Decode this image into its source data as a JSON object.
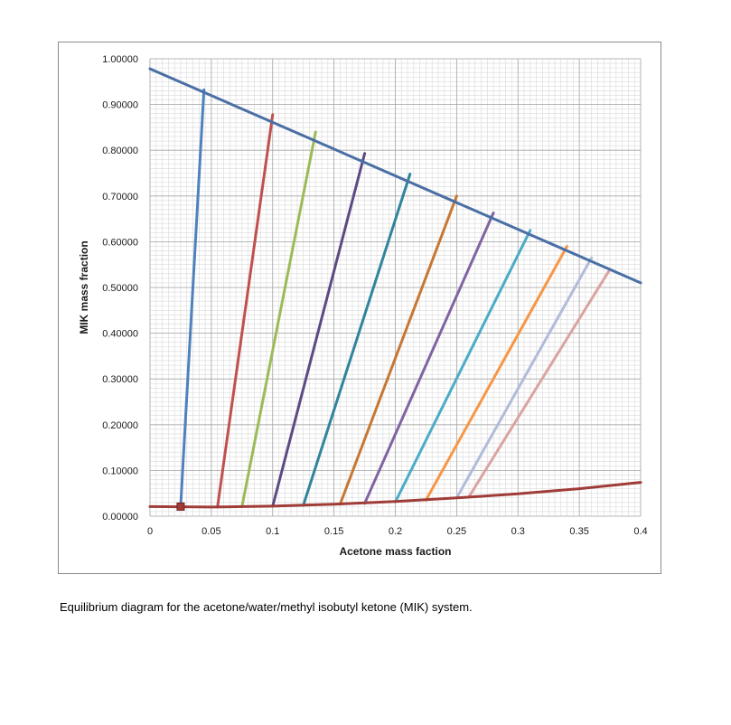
{
  "caption": "Equilibrium diagram for the acetone/water/methyl isobutyl ketone (MIK) system.",
  "chart_data": {
    "type": "line",
    "xlabel": "Acetone mass faction",
    "ylabel": "MIK mass fraction",
    "xlim": [
      0,
      0.4
    ],
    "ylim": [
      0,
      1.0
    ],
    "x_ticks": [
      "0",
      "0.05",
      "0.1",
      "0.15",
      "0.2",
      "0.25",
      "0.3",
      "0.35",
      "0.4"
    ],
    "y_ticks": [
      "0.00000",
      "0.10000",
      "0.20000",
      "0.30000",
      "0.40000",
      "0.50000",
      "0.60000",
      "0.70000",
      "0.80000",
      "0.90000",
      "1.00000"
    ],
    "grid": true,
    "minor_grid": true,
    "extract_curve": {
      "color": "#4a6fa5",
      "x": [
        0,
        0.4
      ],
      "y": [
        0.978,
        0.51
      ]
    },
    "raffinate_curve": {
      "color": "#a03c38",
      "x": [
        0,
        0.05,
        0.1,
        0.15,
        0.2,
        0.25,
        0.3,
        0.35,
        0.4
      ],
      "y": [
        0.021,
        0.02,
        0.022,
        0.026,
        0.032,
        0.04,
        0.049,
        0.06,
        0.074
      ]
    },
    "marker": {
      "x": 0.025,
      "y": 0.021,
      "color": "#a03c38"
    },
    "tie_lines": [
      {
        "color": "#4f81bd",
        "x": [
          0.025,
          0.044
        ],
        "y": [
          0.021,
          0.932
        ]
      },
      {
        "color": "#c0504d",
        "x": [
          0.055,
          0.1
        ],
        "y": [
          0.02,
          0.878
        ]
      },
      {
        "color": "#9bbb59",
        "x": [
          0.075,
          0.135
        ],
        "y": [
          0.021,
          0.84
        ]
      },
      {
        "color": "#5c4a82",
        "x": [
          0.1,
          0.175
        ],
        "y": [
          0.022,
          0.793
        ]
      },
      {
        "color": "#31849b",
        "x": [
          0.125,
          0.212
        ],
        "y": [
          0.024,
          0.748
        ]
      },
      {
        "color": "#c77734",
        "x": [
          0.155,
          0.25
        ],
        "y": [
          0.026,
          0.7
        ]
      },
      {
        "color": "#8064a2",
        "x": [
          0.175,
          0.28
        ],
        "y": [
          0.028,
          0.663
        ]
      },
      {
        "color": "#4bacc6",
        "x": [
          0.2,
          0.31
        ],
        "y": [
          0.031,
          0.625
        ]
      },
      {
        "color": "#f79646",
        "x": [
          0.225,
          0.34
        ],
        "y": [
          0.035,
          0.59
        ]
      },
      {
        "color": "#b0bcd9",
        "x": [
          0.25,
          0.36
        ],
        "y": [
          0.04,
          0.565
        ]
      },
      {
        "color": "#d9a4a2",
        "x": [
          0.26,
          0.375
        ],
        "y": [
          0.042,
          0.54
        ]
      }
    ]
  }
}
